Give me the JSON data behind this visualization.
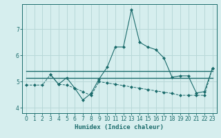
{
  "xlabel": "Humidex (Indice chaleur)",
  "background_color": "#d6eeee",
  "grid_color": "#b8d8d8",
  "line_color": "#1a6b6b",
  "xlim": [
    -0.5,
    23.5
  ],
  "ylim": [
    3.8,
    7.95
  ],
  "yticks": [
    4,
    5,
    6,
    7
  ],
  "xticks": [
    0,
    1,
    2,
    3,
    4,
    5,
    6,
    7,
    8,
    9,
    10,
    11,
    12,
    13,
    14,
    15,
    16,
    17,
    18,
    19,
    20,
    21,
    22,
    23
  ],
  "series": [
    {
      "x": [
        0,
        1,
        2,
        3,
        4,
        5,
        6,
        7,
        8,
        9,
        10,
        11,
        12,
        13,
        14,
        15,
        16,
        17,
        18,
        19,
        20,
        21,
        22,
        23
      ],
      "y": [
        4.87,
        4.87,
        4.87,
        5.27,
        4.9,
        4.87,
        4.75,
        4.62,
        4.47,
        5.0,
        4.95,
        4.9,
        4.85,
        4.8,
        4.75,
        4.7,
        4.65,
        4.6,
        4.55,
        4.48,
        4.48,
        4.48,
        4.48,
        5.52
      ],
      "linestyle": "--",
      "linewidth": 0.7,
      "marker": "D",
      "markersize": 2.0
    },
    {
      "x": [
        0,
        23
      ],
      "y": [
        5.4,
        5.4
      ],
      "linestyle": "-",
      "linewidth": 1.0,
      "marker": null,
      "markersize": 0
    },
    {
      "x": [
        0,
        23
      ],
      "y": [
        5.15,
        5.15
      ],
      "linestyle": "-",
      "linewidth": 1.0,
      "marker": null,
      "markersize": 0
    },
    {
      "x": [
        3,
        4,
        5,
        6,
        7,
        8,
        9,
        10,
        11,
        12,
        13,
        14,
        15,
        16,
        17,
        18,
        19,
        20,
        21,
        22,
        23
      ],
      "y": [
        5.27,
        4.9,
        5.15,
        4.75,
        4.3,
        4.55,
        5.1,
        5.55,
        6.32,
        6.32,
        7.75,
        6.5,
        6.32,
        6.22,
        5.9,
        5.17,
        5.22,
        5.22,
        4.57,
        4.62,
        5.52
      ],
      "linestyle": "-",
      "linewidth": 0.8,
      "marker": "D",
      "markersize": 2.0
    }
  ]
}
